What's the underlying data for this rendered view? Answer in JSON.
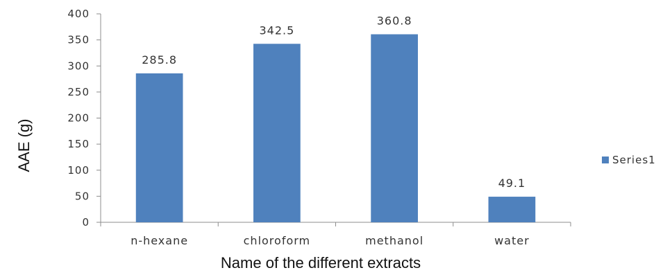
{
  "chart_data": {
    "type": "bar",
    "categories": [
      "n-hexane",
      "chloroform",
      "methanol",
      "water"
    ],
    "series": [
      {
        "name": "Series1",
        "values": [
          285.8,
          342.5,
          360.8,
          49.1
        ],
        "color": "#4f81bd"
      }
    ],
    "data_labels": [
      "285.8",
      "342.5",
      "360.8",
      "49.1"
    ],
    "title": "",
    "xlabel": "Name of the different extracts",
    "ylabel": "AAE (g)",
    "ylim": [
      0,
      400
    ],
    "yticks": [
      0,
      50,
      100,
      150,
      200,
      250,
      300,
      350,
      400
    ],
    "grid": false,
    "legend_position": "right"
  }
}
